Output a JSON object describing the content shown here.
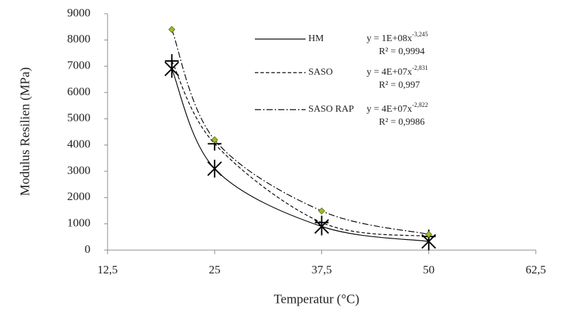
{
  "chart_data": {
    "type": "scatter",
    "x_label": "Temperatur  (°C)",
    "y_label": "Modulus Resilien  (MPa)",
    "x": [
      20,
      25,
      37.5,
      50
    ],
    "xlim": [
      12.5,
      62.5
    ],
    "xticks": [
      {
        "value": 12.5,
        "label": "12,5"
      },
      25,
      {
        "value": 37.5,
        "label": "37,5"
      },
      50,
      {
        "value": 62.5,
        "label": "62,5"
      }
    ],
    "ylim": [
      0,
      9000
    ],
    "yticks": [
      0,
      1000,
      2000,
      3000,
      4000,
      5000,
      6000,
      7000,
      8000,
      9000
    ],
    "grid": false,
    "series": [
      {
        "name": "HM",
        "color": "#000000",
        "marker": "asterisk",
        "marker_color": "#000000",
        "dash": "solid",
        "values": [
          6900,
          3100,
          900,
          330
        ],
        "equation": {
          "base": "y = 1E+08x",
          "exponent": "-3,245"
        },
        "r2": "R² = 0,9994"
      },
      {
        "name": "SASO",
        "color": "#000000",
        "marker": "plus",
        "marker_color": "#000000",
        "dash": "dashed",
        "values": [
          7200,
          4050,
          1050,
          520
        ],
        "equation": {
          "base": "y = 4E+07x",
          "exponent": "-2,831"
        },
        "r2": "R² = 0,997"
      },
      {
        "name": "SASO RAP",
        "color": "#000000",
        "marker": "diamond",
        "marker_color": "#9bbb2f",
        "dash": "dashdot",
        "values": [
          8400,
          4200,
          1490,
          600
        ],
        "equation": {
          "base": "y = 4E+07x",
          "exponent": "-2,822"
        },
        "r2": "R² = 0,9986"
      }
    ]
  }
}
